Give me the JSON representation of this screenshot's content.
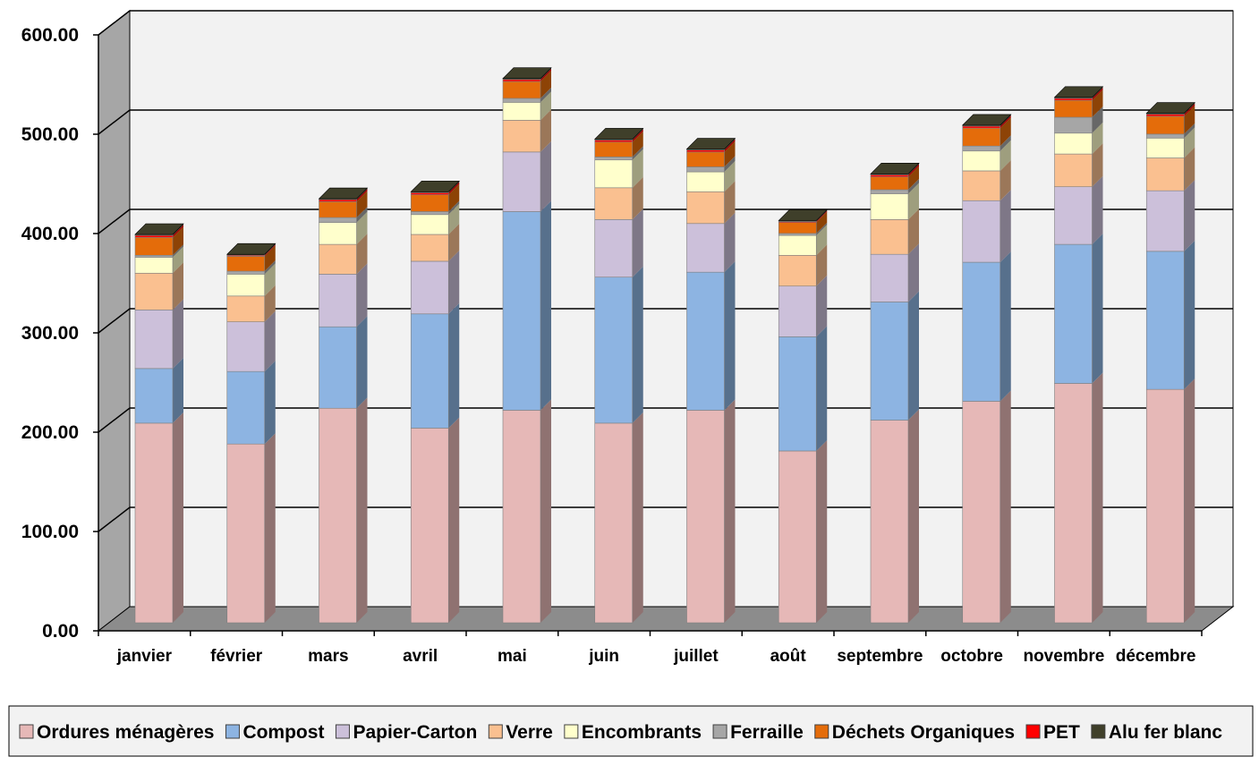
{
  "chart_data": {
    "type": "bar",
    "stacked": true,
    "three_d": true,
    "ylim": [
      0,
      600
    ],
    "yticks": [
      "0.00",
      "100.00",
      "200.00",
      "300.00",
      "400.00",
      "500.00",
      "600.00"
    ],
    "ytick_values": [
      0,
      100,
      200,
      300,
      400,
      500,
      600
    ],
    "grid": true,
    "legend_position": "bottom",
    "categories": [
      "janvier",
      "février",
      "mars",
      "avril",
      "mai",
      "juin",
      "juillet",
      "août",
      "septembre",
      "octobre",
      "novembre",
      "décembre"
    ],
    "series": [
      {
        "name": "Ordures ménagères",
        "color": "#E6B8B7",
        "values": [
          201,
          180,
          216,
          196,
          214,
          201,
          214,
          173,
          204,
          223,
          241,
          235
        ]
      },
      {
        "name": "Compost",
        "color": "#8DB4E2",
        "values": [
          55,
          73,
          82,
          115,
          200,
          147,
          139,
          115,
          119,
          140,
          140,
          139
        ]
      },
      {
        "name": "Papier-Carton",
        "color": "#CCC0DA",
        "values": [
          59,
          50,
          53,
          53,
          60,
          58,
          49,
          51,
          48,
          62,
          58,
          61
        ]
      },
      {
        "name": "Verre",
        "color": "#FAC090",
        "values": [
          37,
          26,
          30,
          27,
          32,
          32,
          32,
          31,
          35,
          30,
          33,
          33
        ]
      },
      {
        "name": "Encombrants",
        "color": "#FFFFCC",
        "values": [
          16,
          22,
          22,
          20,
          18,
          28,
          20,
          20,
          26,
          20,
          21,
          20
        ]
      },
      {
        "name": "Ferraille",
        "color": "#A6A6A6",
        "values": [
          2,
          3,
          5,
          3,
          4,
          3,
          5,
          2,
          4,
          5,
          16,
          4
        ]
      },
      {
        "name": "Déchets Organiques",
        "color": "#E46C0A",
        "values": [
          18,
          15,
          16,
          17,
          17,
          15,
          15,
          11,
          13,
          18,
          17,
          18
        ]
      },
      {
        "name": "PET",
        "color": "#FF0000",
        "values": [
          2,
          1,
          2,
          2,
          2,
          2,
          2,
          1,
          2,
          2,
          2,
          2
        ]
      },
      {
        "name": "Alu fer blanc",
        "color": "#3F3F2A",
        "values": [
          1,
          1,
          1,
          1,
          1,
          1,
          1,
          1,
          1,
          1,
          1,
          1
        ]
      }
    ]
  }
}
